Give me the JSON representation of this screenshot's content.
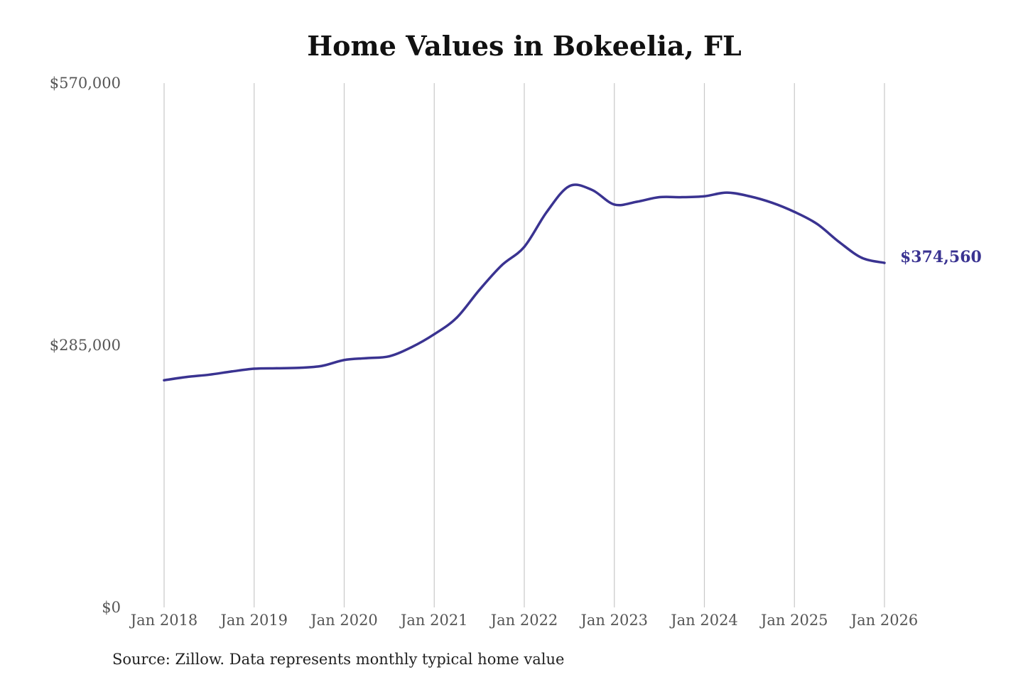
{
  "chart_data": {
    "type": "line",
    "title": "Home Values in Bokeelia, FL",
    "xlabel": "",
    "ylabel": "",
    "source": "Source: Zillow. Data represents monthly typical home value",
    "line_color": "#3a3391",
    "grid": "vertical",
    "y_ticks": [
      {
        "value": 570000,
        "label": "$570,000"
      },
      {
        "value": 285000,
        "label": "$285,000"
      },
      {
        "value": 0,
        "label": "$0"
      }
    ],
    "x_ticks": [
      {
        "date": "2018-01",
        "label": "Jan 2018"
      },
      {
        "date": "2019-01",
        "label": "Jan 2019"
      },
      {
        "date": "2020-01",
        "label": "Jan 2020"
      },
      {
        "date": "2021-01",
        "label": "Jan 2021"
      },
      {
        "date": "2022-01",
        "label": "Jan 2022"
      },
      {
        "date": "2023-01",
        "label": "Jan 2023"
      },
      {
        "date": "2024-01",
        "label": "Jan 2024"
      },
      {
        "date": "2025-01",
        "label": "Jan 2025"
      },
      {
        "date": "2026-01",
        "label": "Jan 2026"
      }
    ],
    "xlim": [
      "2018-01",
      "2026-01"
    ],
    "ylim": [
      0,
      570000
    ],
    "end_label": "$374,560",
    "series": [
      {
        "name": "",
        "points": [
          {
            "x": "2018-01",
            "y": 247000
          },
          {
            "x": "2018-04",
            "y": 250500
          },
          {
            "x": "2018-07",
            "y": 253000
          },
          {
            "x": "2018-10",
            "y": 256500
          },
          {
            "x": "2019-01",
            "y": 259500
          },
          {
            "x": "2019-04",
            "y": 260000
          },
          {
            "x": "2019-07",
            "y": 260500
          },
          {
            "x": "2019-10",
            "y": 262500
          },
          {
            "x": "2020-01",
            "y": 269000
          },
          {
            "x": "2020-04",
            "y": 271000
          },
          {
            "x": "2020-07",
            "y": 273000
          },
          {
            "x": "2020-10",
            "y": 283000
          },
          {
            "x": "2021-01",
            "y": 297000
          },
          {
            "x": "2021-04",
            "y": 315000
          },
          {
            "x": "2021-07",
            "y": 345000
          },
          {
            "x": "2021-10",
            "y": 372000
          },
          {
            "x": "2022-01",
            "y": 392000
          },
          {
            "x": "2022-04",
            "y": 430000
          },
          {
            "x": "2022-07",
            "y": 458000
          },
          {
            "x": "2022-10",
            "y": 454000
          },
          {
            "x": "2023-01",
            "y": 438000
          },
          {
            "x": "2023-04",
            "y": 441000
          },
          {
            "x": "2023-07",
            "y": 446000
          },
          {
            "x": "2023-10",
            "y": 446000
          },
          {
            "x": "2024-01",
            "y": 447000
          },
          {
            "x": "2024-04",
            "y": 451000
          },
          {
            "x": "2024-07",
            "y": 447000
          },
          {
            "x": "2024-10",
            "y": 440000
          },
          {
            "x": "2025-01",
            "y": 430000
          },
          {
            "x": "2025-04",
            "y": 417000
          },
          {
            "x": "2025-07",
            "y": 397000
          },
          {
            "x": "2025-10",
            "y": 380000
          },
          {
            "x": "2026-01",
            "y": 374560
          }
        ]
      }
    ]
  }
}
